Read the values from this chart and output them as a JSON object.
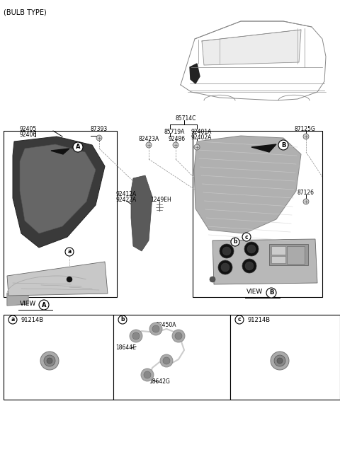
{
  "bg_color": "#ffffff",
  "line_color": "#000000",
  "labels": {
    "bulb_type": "(BULB TYPE)",
    "85714C": "85714C",
    "85719A": "85719A",
    "82423A": "82423A",
    "92486": "92486",
    "92401A": "92401A",
    "92402A": "92402A",
    "87125G": "87125G",
    "92405": "92405",
    "92406": "92406",
    "87393": "87393",
    "92412A": "92412A",
    "92422A": "92422A",
    "1249EH": "1249EH",
    "87126": "87126",
    "91214B": "91214B",
    "92450A": "92450A",
    "18644E": "18644E",
    "18642G": "18642G"
  }
}
